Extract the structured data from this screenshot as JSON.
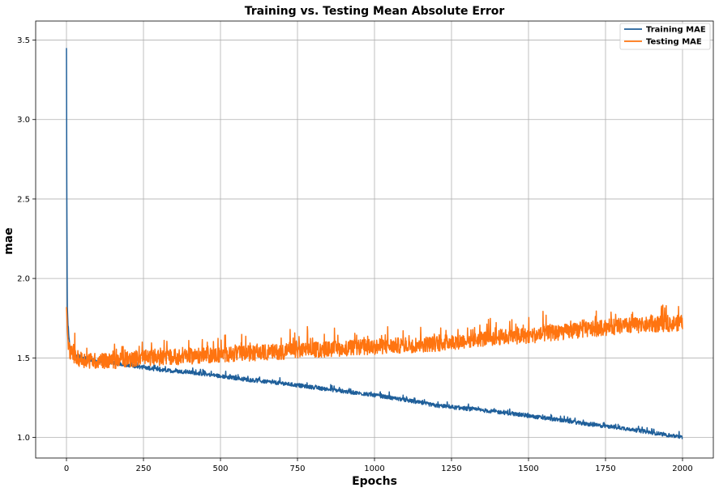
{
  "chart_data": {
    "type": "line",
    "title": "Training vs. Testing Mean Absolute Error",
    "xlabel": "Epochs",
    "ylabel": "mae",
    "xlim": [
      -100,
      2100
    ],
    "ylim": [
      0.87,
      3.62
    ],
    "grid": true,
    "legend_position": "top-right",
    "x_ticks": [
      0,
      250,
      500,
      750,
      1000,
      1250,
      1500,
      1750,
      2000
    ],
    "y_ticks": [
      1.0,
      1.5,
      2.0,
      2.5,
      3.0,
      3.5
    ],
    "x_tick_labels": [
      "0",
      "250",
      "500",
      "750",
      "1000",
      "1250",
      "1500",
      "1750",
      "2000"
    ],
    "y_tick_labels": [
      "1.0",
      "1.5",
      "2.0",
      "2.5",
      "3.0",
      "3.5"
    ],
    "series": [
      {
        "name": "Training MAE",
        "color": "#1f5f9a",
        "x": [
          0,
          1,
          2,
          3,
          5,
          8,
          12,
          20,
          30,
          50,
          100,
          150,
          200,
          250,
          300,
          400,
          500,
          600,
          700,
          800,
          900,
          1000,
          1100,
          1200,
          1300,
          1400,
          1500,
          1600,
          1700,
          1800,
          1900,
          2000
        ],
        "y": [
          3.45,
          2.6,
          2.05,
          1.82,
          1.7,
          1.62,
          1.57,
          1.53,
          1.51,
          1.5,
          1.48,
          1.47,
          1.455,
          1.44,
          1.425,
          1.41,
          1.385,
          1.36,
          1.34,
          1.315,
          1.29,
          1.265,
          1.235,
          1.2,
          1.18,
          1.16,
          1.135,
          1.11,
          1.08,
          1.06,
          1.03,
          1.0
        ],
        "noise": 0.012
      },
      {
        "name": "Testing MAE",
        "color": "#ff7410",
        "x": [
          0,
          5,
          10,
          20,
          30,
          50,
          100,
          150,
          200,
          250,
          300,
          400,
          500,
          600,
          700,
          800,
          900,
          1000,
          1100,
          1200,
          1300,
          1400,
          1500,
          1600,
          1700,
          1800,
          1900,
          2000
        ],
        "y": [
          1.82,
          1.6,
          1.55,
          1.52,
          1.5,
          1.49,
          1.48,
          1.48,
          1.49,
          1.5,
          1.5,
          1.51,
          1.52,
          1.53,
          1.54,
          1.55,
          1.56,
          1.57,
          1.58,
          1.59,
          1.61,
          1.63,
          1.64,
          1.66,
          1.68,
          1.7,
          1.71,
          1.72
        ],
        "noise": 0.05
      }
    ]
  }
}
